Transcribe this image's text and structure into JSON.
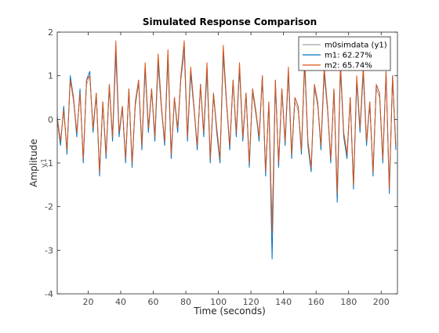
{
  "chart_data": {
    "type": "line",
    "title": "Simulated Response Comparison",
    "xlabel": "Time (seconds)",
    "ylabel": "Amplitude",
    "ylabel_sub": "y1",
    "xlim": [
      1,
      210
    ],
    "ylim": [
      -4,
      2
    ],
    "xticks": [
      20,
      40,
      60,
      80,
      100,
      120,
      140,
      160,
      180,
      200
    ],
    "yticks": [
      -4,
      -3,
      -2,
      -1,
      0,
      1,
      2
    ],
    "grid": false,
    "legend_position": "top-right",
    "series": [
      {
        "name": "m0simdata (y1)",
        "color": "#8c8c8c",
        "x": [
          1,
          3,
          5,
          7,
          9,
          11,
          13,
          15,
          17,
          19,
          21,
          23,
          25,
          27,
          29,
          31,
          33,
          35,
          37,
          39,
          41,
          43,
          45,
          47,
          49,
          51,
          53,
          55,
          57,
          59,
          61,
          63,
          65,
          67,
          69,
          71,
          73,
          75,
          77,
          79,
          81,
          83,
          85,
          87,
          89,
          91,
          93,
          95,
          97,
          99,
          101,
          103,
          105,
          107,
          109,
          111,
          113,
          115,
          117,
          119,
          121,
          123,
          125,
          127,
          129,
          131,
          133,
          135,
          137,
          139,
          141,
          143,
          145,
          147,
          149,
          151,
          153,
          155,
          157,
          159,
          161,
          163,
          165,
          167,
          169,
          171,
          173,
          175,
          177,
          179,
          181,
          183,
          185,
          187,
          189,
          191,
          193,
          195,
          197,
          199,
          201,
          203,
          205,
          207,
          209
        ],
        "y": [
          0.1,
          -0.5,
          0.2,
          -0.7,
          0.9,
          0.4,
          -0.3,
          0.6,
          -0.9,
          0.8,
          1.0,
          -0.2,
          0.5,
          -1.2,
          0.3,
          -0.8,
          0.7,
          -0.4,
          1.4,
          -0.3,
          0.2,
          -0.9,
          0.6,
          -1.0,
          0.3,
          0.8,
          -0.6,
          1.1,
          -0.2,
          0.6,
          -0.4,
          1.2,
          0.2,
          -0.5,
          1.3,
          -0.8,
          0.4,
          -0.2,
          0.9,
          1.5,
          -0.4,
          1.0,
          0.2,
          -0.6,
          0.7,
          -0.3,
          1.0,
          -0.9,
          0.5,
          -0.2,
          -0.9,
          1.4,
          0.3,
          -0.6,
          0.8,
          -0.3,
          1.1,
          -0.4,
          0.5,
          -1.0,
          0.6,
          0.1,
          -0.4,
          0.9,
          -1.2,
          0.3,
          -2.4,
          0.8,
          -1.0,
          0.6,
          -0.5,
          1.0,
          -0.8,
          0.4,
          0.2,
          -0.7,
          1.2,
          -0.5,
          -1.1,
          0.7,
          0.3,
          -0.6,
          1.0,
          0.2,
          -0.9,
          0.6,
          -1.6,
          1.1,
          -0.3,
          -0.8,
          0.4,
          -1.4,
          0.8,
          -0.2,
          1.0,
          -0.5,
          0.3,
          -1.2,
          0.7,
          0.5,
          -0.9,
          1.0,
          -1.5,
          0.9,
          -0.6
        ],
        "width": 0.7
      },
      {
        "name": "m1: 62.27%",
        "color": "#0072bd",
        "x": [
          1,
          3,
          5,
          7,
          9,
          11,
          13,
          15,
          17,
          19,
          21,
          23,
          25,
          27,
          29,
          31,
          33,
          35,
          37,
          39,
          41,
          43,
          45,
          47,
          49,
          51,
          53,
          55,
          57,
          59,
          61,
          63,
          65,
          67,
          69,
          71,
          73,
          75,
          77,
          79,
          81,
          83,
          85,
          87,
          89,
          91,
          93,
          95,
          97,
          99,
          101,
          103,
          105,
          107,
          109,
          111,
          113,
          115,
          117,
          119,
          121,
          123,
          125,
          127,
          129,
          131,
          133,
          135,
          137,
          139,
          141,
          143,
          145,
          147,
          149,
          151,
          153,
          155,
          157,
          159,
          161,
          163,
          165,
          167,
          169,
          171,
          173,
          175,
          177,
          179,
          181,
          183,
          185,
          187,
          189,
          191,
          193,
          195,
          197,
          199,
          201,
          203,
          205,
          207,
          209
        ],
        "y": [
          0.0,
          -0.6,
          0.3,
          -0.8,
          1.0,
          0.5,
          -0.4,
          0.7,
          -1.0,
          0.9,
          1.1,
          -0.3,
          0.6,
          -1.3,
          0.4,
          -0.9,
          0.8,
          -0.5,
          1.6,
          -0.4,
          0.3,
          -1.0,
          0.7,
          -1.1,
          0.4,
          0.9,
          -0.7,
          1.2,
          -0.3,
          0.7,
          -0.5,
          1.4,
          0.3,
          -0.6,
          1.5,
          -0.9,
          0.5,
          -0.3,
          1.0,
          1.7,
          -0.5,
          1.1,
          0.3,
          -0.7,
          0.8,
          -0.4,
          1.2,
          -1.0,
          0.6,
          -0.3,
          -1.0,
          1.6,
          0.4,
          -0.7,
          0.9,
          -0.4,
          1.2,
          -0.5,
          0.6,
          -1.1,
          0.7,
          0.2,
          -0.5,
          1.0,
          -1.3,
          0.4,
          -3.2,
          0.9,
          -1.1,
          0.7,
          -0.6,
          1.1,
          -0.9,
          0.5,
          0.3,
          -0.8,
          1.3,
          -0.6,
          -1.2,
          0.8,
          0.4,
          -0.7,
          1.1,
          0.3,
          -1.0,
          0.7,
          -1.9,
          1.2,
          -0.4,
          -0.9,
          0.5,
          -1.6,
          0.9,
          -0.3,
          1.1,
          -0.6,
          0.4,
          -1.3,
          0.8,
          0.6,
          -1.0,
          1.1,
          -1.7,
          1.0,
          -0.7
        ],
        "width": 1.0
      },
      {
        "name": "m2: 65.74%",
        "color": "#d95319",
        "x": [
          1,
          3,
          5,
          7,
          9,
          11,
          13,
          15,
          17,
          19,
          21,
          23,
          25,
          27,
          29,
          31,
          33,
          35,
          37,
          39,
          41,
          43,
          45,
          47,
          49,
          51,
          53,
          55,
          57,
          59,
          61,
          63,
          65,
          67,
          69,
          71,
          73,
          75,
          77,
          79,
          81,
          83,
          85,
          87,
          89,
          91,
          93,
          95,
          97,
          99,
          101,
          103,
          105,
          107,
          109,
          111,
          113,
          115,
          117,
          119,
          121,
          123,
          125,
          127,
          129,
          131,
          133,
          135,
          137,
          139,
          141,
          143,
          145,
          147,
          149,
          151,
          153,
          155,
          157,
          159,
          161,
          163,
          165,
          167,
          169,
          171,
          173,
          175,
          177,
          179,
          181,
          183,
          185,
          187,
          189,
          191,
          193,
          195,
          197,
          199,
          201,
          203,
          205,
          207,
          209
        ],
        "y": [
          0.0,
          -0.5,
          0.2,
          -0.7,
          0.9,
          0.5,
          -0.3,
          0.6,
          -0.9,
          0.9,
          1.0,
          -0.2,
          0.6,
          -1.2,
          0.4,
          -0.8,
          0.8,
          -0.4,
          1.8,
          -0.3,
          0.3,
          -0.9,
          0.7,
          -1.0,
          0.4,
          0.9,
          -0.6,
          1.3,
          -0.2,
          0.7,
          -0.4,
          1.5,
          0.3,
          -0.5,
          1.6,
          -0.8,
          0.5,
          -0.2,
          1.0,
          1.8,
          -0.4,
          1.2,
          0.3,
          -0.6,
          0.8,
          -0.3,
          1.3,
          -0.9,
          0.6,
          -0.2,
          -0.9,
          1.7,
          0.4,
          -0.6,
          0.9,
          -0.3,
          1.3,
          -0.4,
          0.6,
          -1.0,
          0.7,
          0.2,
          -0.4,
          1.0,
          -1.2,
          0.4,
          -2.6,
          0.9,
          -1.0,
          0.7,
          -0.5,
          1.2,
          -0.8,
          0.5,
          0.3,
          -0.7,
          1.4,
          -0.5,
          -1.1,
          0.8,
          0.4,
          -0.6,
          1.2,
          0.3,
          -0.9,
          0.7,
          -1.7,
          1.3,
          -0.3,
          -0.8,
          0.5,
          -1.5,
          1.0,
          -0.2,
          1.2,
          -0.5,
          0.4,
          -1.2,
          0.8,
          0.6,
          -0.9,
          1.1,
          -1.6,
          1.0,
          -0.6
        ],
        "width": 1.0
      }
    ]
  }
}
